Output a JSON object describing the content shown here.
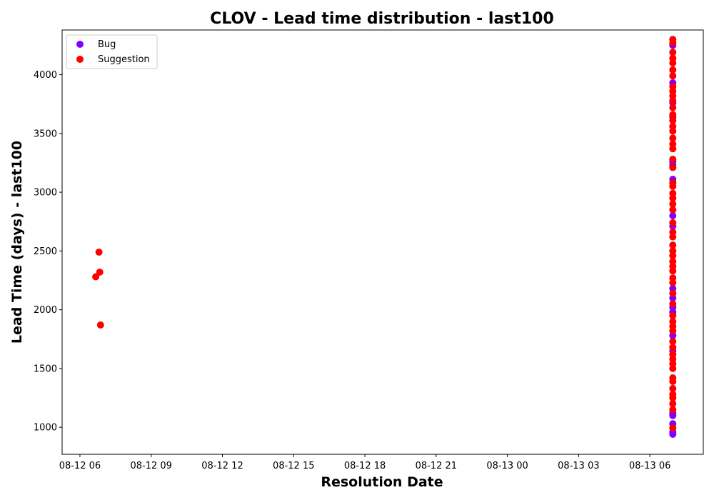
{
  "chart_data": {
    "type": "scatter",
    "title": "CLOV - Lead time distribution - last100",
    "xlabel": "Resolution Date",
    "ylabel": "Lead Time (days) - last100",
    "xlim": [
      "2022-08-12 05:15",
      "2022-08-13 08:15"
    ],
    "ylim": [
      770,
      4380
    ],
    "x_ticks": [
      "08-12 06",
      "08-12 09",
      "08-12 12",
      "08-12 15",
      "08-12 18",
      "08-12 21",
      "08-13 00",
      "08-13 03",
      "08-13 06"
    ],
    "y_ticks": [
      1000,
      1500,
      2000,
      2500,
      3000,
      3500,
      4000
    ],
    "grid": false,
    "legend_position": "upper left",
    "series": [
      {
        "name": "Bug",
        "color": "#7f00ff",
        "points": [
          [
            "2022-08-13 06:58",
            940
          ],
          [
            "2022-08-13 06:58",
            960
          ],
          [
            "2022-08-13 06:58",
            1030
          ],
          [
            "2022-08-13 06:58",
            1100
          ],
          [
            "2022-08-13 06:58",
            1120
          ],
          [
            "2022-08-13 06:58",
            1650
          ],
          [
            "2022-08-13 06:58",
            1780
          ],
          [
            "2022-08-13 06:58",
            1980
          ],
          [
            "2022-08-13 06:58",
            2020
          ],
          [
            "2022-08-13 06:58",
            2100
          ],
          [
            "2022-08-13 06:58",
            2180
          ],
          [
            "2022-08-13 06:58",
            2710
          ],
          [
            "2022-08-13 06:58",
            2800
          ],
          [
            "2022-08-13 06:58",
            3110
          ],
          [
            "2022-08-13 06:58",
            3230
          ],
          [
            "2022-08-13 06:58",
            3260
          ],
          [
            "2022-08-13 06:58",
            3640
          ],
          [
            "2022-08-13 06:58",
            3760
          ],
          [
            "2022-08-13 06:58",
            3930
          ],
          [
            "2022-08-13 06:58",
            4250
          ]
        ]
      },
      {
        "name": "Suggestion",
        "color": "#ff0000",
        "points": [
          [
            "2022-08-12 06:40",
            2280
          ],
          [
            "2022-08-12 06:48",
            2490
          ],
          [
            "2022-08-12 06:50",
            2320
          ],
          [
            "2022-08-12 06:52",
            1870
          ],
          [
            "2022-08-13 06:58",
            995
          ],
          [
            "2022-08-13 06:58",
            1150
          ],
          [
            "2022-08-13 06:58",
            1200
          ],
          [
            "2022-08-13 06:58",
            1250
          ],
          [
            "2022-08-13 06:58",
            1280
          ],
          [
            "2022-08-13 06:58",
            1330
          ],
          [
            "2022-08-13 06:58",
            1390
          ],
          [
            "2022-08-13 06:58",
            1420
          ],
          [
            "2022-08-13 06:58",
            1500
          ],
          [
            "2022-08-13 06:58",
            1540
          ],
          [
            "2022-08-13 06:58",
            1580
          ],
          [
            "2022-08-13 06:58",
            1620
          ],
          [
            "2022-08-13 06:58",
            1680
          ],
          [
            "2022-08-13 06:58",
            1730
          ],
          [
            "2022-08-13 06:58",
            1820
          ],
          [
            "2022-08-13 06:58",
            1860
          ],
          [
            "2022-08-13 06:58",
            1900
          ],
          [
            "2022-08-13 06:58",
            1950
          ],
          [
            "2022-08-13 06:58",
            2050
          ],
          [
            "2022-08-13 06:58",
            2140
          ],
          [
            "2022-08-13 06:58",
            2230
          ],
          [
            "2022-08-13 06:58",
            2270
          ],
          [
            "2022-08-13 06:58",
            2330
          ],
          [
            "2022-08-13 06:58",
            2370
          ],
          [
            "2022-08-13 06:58",
            2410
          ],
          [
            "2022-08-13 06:58",
            2460
          ],
          [
            "2022-08-13 06:58",
            2500
          ],
          [
            "2022-08-13 06:58",
            2550
          ],
          [
            "2022-08-13 06:58",
            2620
          ],
          [
            "2022-08-13 06:58",
            2660
          ],
          [
            "2022-08-13 06:58",
            2740
          ],
          [
            "2022-08-13 06:58",
            2850
          ],
          [
            "2022-08-13 06:58",
            2900
          ],
          [
            "2022-08-13 06:58",
            2950
          ],
          [
            "2022-08-13 06:58",
            2990
          ],
          [
            "2022-08-13 06:58",
            3050
          ],
          [
            "2022-08-13 06:58",
            3080
          ],
          [
            "2022-08-13 06:58",
            3210
          ],
          [
            "2022-08-13 06:58",
            3280
          ],
          [
            "2022-08-13 06:58",
            3370
          ],
          [
            "2022-08-13 06:58",
            3410
          ],
          [
            "2022-08-13 06:58",
            3460
          ],
          [
            "2022-08-13 06:58",
            3520
          ],
          [
            "2022-08-13 06:58",
            3560
          ],
          [
            "2022-08-13 06:58",
            3610
          ],
          [
            "2022-08-13 06:58",
            3660
          ],
          [
            "2022-08-13 06:58",
            3720
          ],
          [
            "2022-08-13 06:58",
            3780
          ],
          [
            "2022-08-13 06:58",
            3820
          ],
          [
            "2022-08-13 06:58",
            3860
          ],
          [
            "2022-08-13 06:58",
            3900
          ],
          [
            "2022-08-13 06:58",
            3990
          ],
          [
            "2022-08-13 06:58",
            4040
          ],
          [
            "2022-08-13 06:58",
            4100
          ],
          [
            "2022-08-13 06:58",
            4140
          ],
          [
            "2022-08-13 06:58",
            4190
          ],
          [
            "2022-08-13 06:58",
            4270
          ],
          [
            "2022-08-13 06:58",
            4300
          ]
        ]
      }
    ]
  }
}
